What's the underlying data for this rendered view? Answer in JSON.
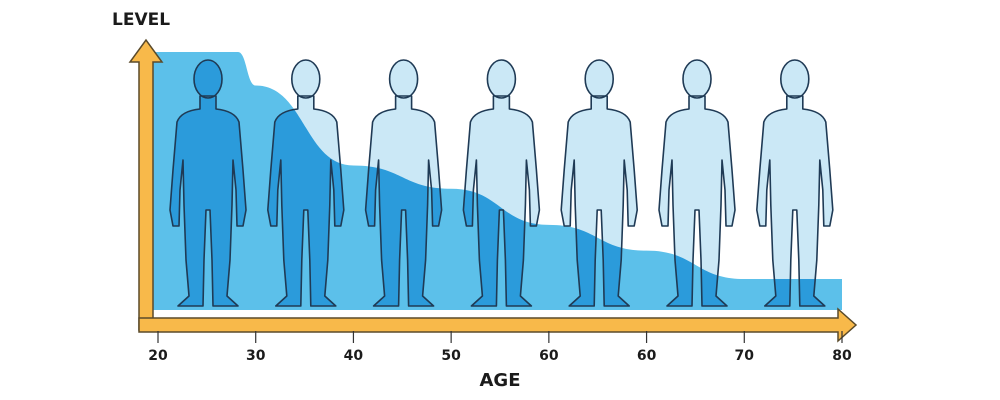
{
  "chart_data": {
    "type": "area",
    "title": "",
    "xlabel": "AGE",
    "ylabel": "LEVEL",
    "x_ticks": [
      "20",
      "30",
      "40",
      "50",
      "60",
      "60",
      "70",
      "80"
    ],
    "series": [
      {
        "values": [
          1.0,
          0.87,
          0.56,
          0.47,
          0.33,
          0.23,
          0.12,
          0.12
        ]
      }
    ],
    "y_ticks": [],
    "grid": false,
    "figure_count": 7,
    "colors": {
      "area": "#5cc0ea",
      "figure_filled": "#2b9bdb",
      "figure_empty": "#cbe8f6",
      "outline": "#1f3a55",
      "axis": "#f8b94a",
      "axis_outline": "#5a4a2a"
    }
  }
}
